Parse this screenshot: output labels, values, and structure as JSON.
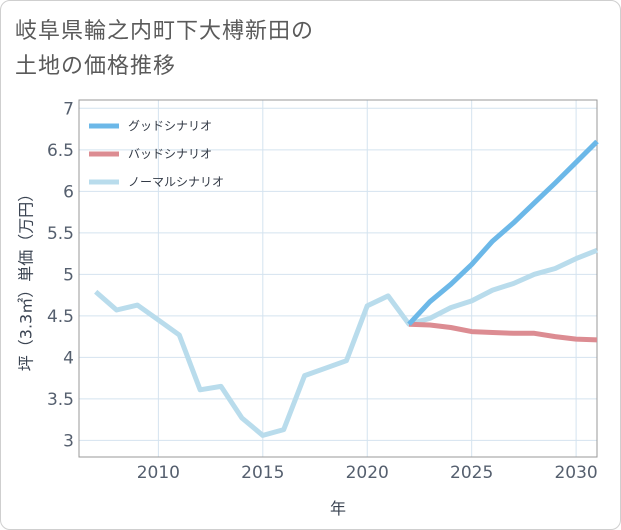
{
  "title": {
    "line1": "岐阜県輪之内町下大榑新田の",
    "line2": "土地の価格推移"
  },
  "chart_data": {
    "type": "line",
    "xlabel": "年",
    "ylabel": "坪（3.3㎡）単価（万円）",
    "xlim": [
      2006.2,
      2031
    ],
    "ylim": [
      2.8,
      7.1
    ],
    "xticks": [
      2010,
      2015,
      2020,
      2025,
      2030
    ],
    "yticks": [
      3,
      3.5,
      4,
      4.5,
      5,
      5.5,
      6,
      6.5,
      7
    ],
    "grid": true,
    "legend_position": "top-left",
    "series": [
      {
        "name": "グッドシナリオ",
        "color": "#6cb8e8",
        "x": [
          2022,
          2023,
          2024,
          2025,
          2026,
          2027,
          2028,
          2029,
          2030,
          2031
        ],
        "y": [
          4.4,
          4.67,
          4.88,
          5.12,
          5.4,
          5.62,
          5.86,
          6.1,
          6.35,
          6.6
        ]
      },
      {
        "name": "バッドシナリオ",
        "color": "#dc8c92",
        "x": [
          2022,
          2023,
          2024,
          2025,
          2026,
          2027,
          2028,
          2029,
          2030,
          2031
        ],
        "y": [
          4.4,
          4.39,
          4.36,
          4.31,
          4.3,
          4.29,
          4.29,
          4.25,
          4.22,
          4.21
        ]
      },
      {
        "name": "ノーマルシナリオ",
        "color": "#b9dcec",
        "x": [
          2007,
          2008,
          2009,
          2010,
          2011,
          2012,
          2013,
          2014,
          2015,
          2016,
          2017,
          2018,
          2019,
          2020,
          2021,
          2022,
          2023,
          2024,
          2025,
          2026,
          2027,
          2028,
          2029,
          2030,
          2031
        ],
        "y": [
          4.79,
          4.57,
          4.63,
          4.45,
          4.27,
          3.61,
          3.65,
          3.27,
          3.06,
          3.13,
          3.78,
          3.87,
          3.96,
          4.62,
          4.74,
          4.4,
          4.47,
          4.6,
          4.68,
          4.81,
          4.89,
          5.0,
          5.07,
          5.19,
          5.29
        ]
      }
    ]
  }
}
